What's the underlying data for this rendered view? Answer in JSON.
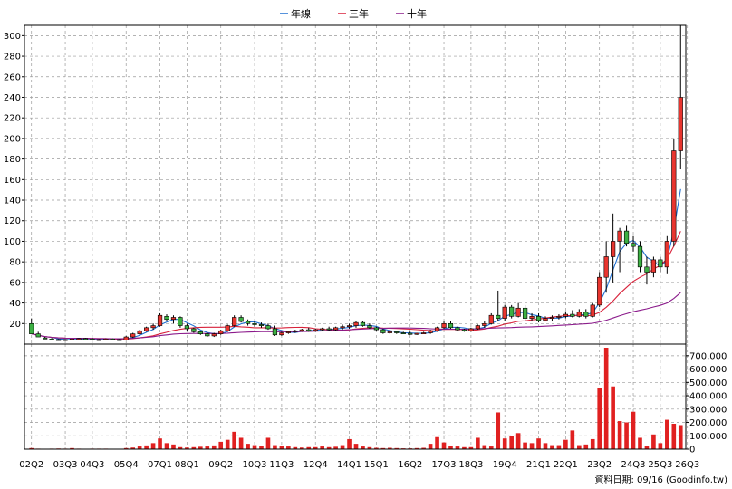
{
  "chart_data": {
    "type": "candlestick",
    "legend": [
      {
        "name": "年線",
        "color": "#1f6fd1"
      },
      {
        "name": "三年",
        "color": "#d8213a"
      },
      {
        "name": "十年",
        "color": "#8b1a8b"
      }
    ],
    "legend_placement": "top-center",
    "grid": true,
    "up_color": "#e8352f",
    "down_color": "#3cb043",
    "volume_color": "#e02020",
    "price_axis": {
      "min": 0,
      "max": 310,
      "ticks": [
        20,
        40,
        60,
        80,
        100,
        120,
        140,
        160,
        180,
        200,
        220,
        240,
        260,
        280,
        300
      ],
      "side": "left"
    },
    "volume_axis": {
      "min": 0,
      "max": 760000,
      "ticks": [
        0,
        100000,
        200000,
        300000,
        400000,
        500000,
        600000,
        700000
      ],
      "tick_labels": [
        "0",
        "100,000",
        "200,000",
        "300,000",
        "400,000",
        "500,000",
        "600,000",
        "700,000"
      ],
      "side": "right"
    },
    "x_tick_labels": [
      {
        "label": "02Q2",
        "q": 0
      },
      {
        "label": "03Q3",
        "q": 5
      },
      {
        "label": "04Q3",
        "q": 9
      },
      {
        "label": "05Q4",
        "q": 14
      },
      {
        "label": "07Q1",
        "q": 19
      },
      {
        "label": "08Q1",
        "q": 23
      },
      {
        "label": "09Q2",
        "q": 28
      },
      {
        "label": "10Q3",
        "q": 33
      },
      {
        "label": "11Q3",
        "q": 37
      },
      {
        "label": "12Q4",
        "q": 42
      },
      {
        "label": "14Q1",
        "q": 47
      },
      {
        "label": "15Q1",
        "q": 51
      },
      {
        "label": "16Q2",
        "q": 56
      },
      {
        "label": "17Q3",
        "q": 61
      },
      {
        "label": "18Q3",
        "q": 65
      },
      {
        "label": "19Q4",
        "q": 70
      },
      {
        "label": "21Q1",
        "q": 75
      },
      {
        "label": "22Q1",
        "q": 79
      },
      {
        "label": "23Q2",
        "q": 84
      },
      {
        "label": "24Q3",
        "q": 89
      },
      {
        "label": "25Q3",
        "q": 93
      },
      {
        "label": "26Q3",
        "q": 97
      }
    ],
    "candles": [
      {
        "o": 20,
        "h": 25,
        "l": 10,
        "c": 10
      },
      {
        "o": 10,
        "h": 12,
        "l": 7,
        "c": 7
      },
      {
        "o": 6,
        "h": 7,
        "l": 5,
        "c": 5
      },
      {
        "o": 5,
        "h": 6,
        "l": 4,
        "c": 4.5
      },
      {
        "o": 4.5,
        "h": 5,
        "l": 3.5,
        "c": 4
      },
      {
        "o": 4,
        "h": 5,
        "l": 3.5,
        "c": 4.5
      },
      {
        "o": 4.5,
        "h": 5.5,
        "l": 4,
        "c": 5
      },
      {
        "o": 5,
        "h": 6,
        "l": 4.5,
        "c": 5.5
      },
      {
        "o": 5.5,
        "h": 6,
        "l": 4.5,
        "c": 5
      },
      {
        "o": 5,
        "h": 6,
        "l": 4,
        "c": 4.5
      },
      {
        "o": 4.5,
        "h": 5,
        "l": 4,
        "c": 4.5
      },
      {
        "o": 4.5,
        "h": 5.5,
        "l": 4,
        "c": 5
      },
      {
        "o": 5,
        "h": 5.5,
        "l": 4,
        "c": 4.5
      },
      {
        "o": 4.5,
        "h": 5,
        "l": 3.5,
        "c": 4
      },
      {
        "o": 4,
        "h": 8,
        "l": 4,
        "c": 7
      },
      {
        "o": 7,
        "h": 11,
        "l": 6,
        "c": 10
      },
      {
        "o": 10,
        "h": 14,
        "l": 9,
        "c": 13
      },
      {
        "o": 13,
        "h": 17,
        "l": 12,
        "c": 16
      },
      {
        "o": 16,
        "h": 20,
        "l": 14,
        "c": 18
      },
      {
        "o": 18,
        "h": 30,
        "l": 17,
        "c": 28
      },
      {
        "o": 27,
        "h": 29,
        "l": 22,
        "c": 24
      },
      {
        "o": 24,
        "h": 28,
        "l": 20,
        "c": 26
      },
      {
        "o": 26,
        "h": 27,
        "l": 16,
        "c": 18
      },
      {
        "o": 18,
        "h": 20,
        "l": 13,
        "c": 15
      },
      {
        "o": 15,
        "h": 16,
        "l": 11,
        "c": 12
      },
      {
        "o": 12,
        "h": 13,
        "l": 9,
        "c": 10
      },
      {
        "o": 10,
        "h": 11,
        "l": 7,
        "c": 8
      },
      {
        "o": 8,
        "h": 11,
        "l": 7,
        "c": 10
      },
      {
        "o": 10,
        "h": 14,
        "l": 9,
        "c": 13
      },
      {
        "o": 13,
        "h": 19,
        "l": 12,
        "c": 18
      },
      {
        "o": 18,
        "h": 28,
        "l": 17,
        "c": 26
      },
      {
        "o": 26,
        "h": 28,
        "l": 21,
        "c": 22
      },
      {
        "o": 22,
        "h": 24,
        "l": 18,
        "c": 20
      },
      {
        "o": 20,
        "h": 22,
        "l": 17,
        "c": 19
      },
      {
        "o": 19,
        "h": 21,
        "l": 16,
        "c": 18
      },
      {
        "o": 18,
        "h": 20,
        "l": 14,
        "c": 15
      },
      {
        "o": 15,
        "h": 18,
        "l": 8,
        "c": 9
      },
      {
        "o": 9,
        "h": 12,
        "l": 8,
        "c": 11
      },
      {
        "o": 11,
        "h": 13,
        "l": 10,
        "c": 12
      },
      {
        "o": 12,
        "h": 14,
        "l": 11,
        "c": 13
      },
      {
        "o": 13,
        "h": 15,
        "l": 12,
        "c": 14
      },
      {
        "o": 14,
        "h": 16,
        "l": 12,
        "c": 13
      },
      {
        "o": 13,
        "h": 15,
        "l": 12,
        "c": 14
      },
      {
        "o": 14,
        "h": 16,
        "l": 13,
        "c": 15
      },
      {
        "o": 15,
        "h": 17,
        "l": 13,
        "c": 14
      },
      {
        "o": 14,
        "h": 17,
        "l": 13,
        "c": 16
      },
      {
        "o": 16,
        "h": 19,
        "l": 14,
        "c": 17
      },
      {
        "o": 17,
        "h": 20,
        "l": 15,
        "c": 18
      },
      {
        "o": 18,
        "h": 22,
        "l": 16,
        "c": 21
      },
      {
        "o": 21,
        "h": 22,
        "l": 17,
        "c": 18
      },
      {
        "o": 18,
        "h": 20,
        "l": 15,
        "c": 16
      },
      {
        "o": 16,
        "h": 17,
        "l": 13,
        "c": 14
      },
      {
        "o": 14,
        "h": 15,
        "l": 10,
        "c": 11
      },
      {
        "o": 11,
        "h": 13,
        "l": 10,
        "c": 12
      },
      {
        "o": 12,
        "h": 13,
        "l": 10,
        "c": 11
      },
      {
        "o": 11,
        "h": 12,
        "l": 10,
        "c": 10.5
      },
      {
        "o": 10.5,
        "h": 12,
        "l": 9,
        "c": 10
      },
      {
        "o": 10,
        "h": 11,
        "l": 9,
        "c": 10.5
      },
      {
        "o": 10.5,
        "h": 12,
        "l": 10,
        "c": 11
      },
      {
        "o": 11,
        "h": 14,
        "l": 10,
        "c": 13
      },
      {
        "o": 13,
        "h": 17,
        "l": 12,
        "c": 16
      },
      {
        "o": 16,
        "h": 22,
        "l": 15,
        "c": 20
      },
      {
        "o": 20,
        "h": 22,
        "l": 15,
        "c": 16
      },
      {
        "o": 16,
        "h": 17,
        "l": 13,
        "c": 14
      },
      {
        "o": 14,
        "h": 15,
        "l": 12,
        "c": 13
      },
      {
        "o": 13,
        "h": 16,
        "l": 12,
        "c": 15
      },
      {
        "o": 15,
        "h": 19,
        "l": 14,
        "c": 18
      },
      {
        "o": 18,
        "h": 22,
        "l": 16,
        "c": 20
      },
      {
        "o": 20,
        "h": 30,
        "l": 19,
        "c": 28
      },
      {
        "o": 28,
        "h": 52,
        "l": 22,
        "c": 25
      },
      {
        "o": 25,
        "h": 38,
        "l": 22,
        "c": 36
      },
      {
        "o": 36,
        "h": 38,
        "l": 25,
        "c": 27
      },
      {
        "o": 27,
        "h": 40,
        "l": 26,
        "c": 35
      },
      {
        "o": 35,
        "h": 38,
        "l": 23,
        "c": 25
      },
      {
        "o": 25,
        "h": 30,
        "l": 22,
        "c": 27
      },
      {
        "o": 27,
        "h": 30,
        "l": 21,
        "c": 23
      },
      {
        "o": 23,
        "h": 27,
        "l": 22,
        "c": 25
      },
      {
        "o": 25,
        "h": 28,
        "l": 22,
        "c": 26
      },
      {
        "o": 26,
        "h": 29,
        "l": 24,
        "c": 27
      },
      {
        "o": 27,
        "h": 32,
        "l": 25,
        "c": 29
      },
      {
        "o": 29,
        "h": 33,
        "l": 26,
        "c": 27
      },
      {
        "o": 27,
        "h": 34,
        "l": 26,
        "c": 31
      },
      {
        "o": 31,
        "h": 34,
        "l": 25,
        "c": 27
      },
      {
        "o": 27,
        "h": 40,
        "l": 26,
        "c": 38
      },
      {
        "o": 38,
        "h": 70,
        "l": 36,
        "c": 65
      },
      {
        "o": 65,
        "h": 100,
        "l": 50,
        "c": 85
      },
      {
        "o": 85,
        "h": 127,
        "l": 60,
        "c": 100
      },
      {
        "o": 100,
        "h": 113,
        "l": 70,
        "c": 110
      },
      {
        "o": 110,
        "h": 115,
        "l": 95,
        "c": 98
      },
      {
        "o": 98,
        "h": 105,
        "l": 90,
        "c": 95
      },
      {
        "o": 95,
        "h": 100,
        "l": 70,
        "c": 75
      },
      {
        "o": 75,
        "h": 85,
        "l": 58,
        "c": 70
      },
      {
        "o": 70,
        "h": 85,
        "l": 65,
        "c": 82
      },
      {
        "o": 82,
        "h": 85,
        "l": 70,
        "c": 75
      },
      {
        "o": 75,
        "h": 105,
        "l": 68,
        "c": 100
      },
      {
        "o": 100,
        "h": 200,
        "l": 95,
        "c": 188
      },
      {
        "o": 188,
        "h": 310,
        "l": 170,
        "c": 240
      }
    ],
    "volumes": [
      8000,
      4000,
      3000,
      4000,
      5000,
      4000,
      8000,
      4000,
      3000,
      4000,
      4000,
      4000,
      3000,
      3000,
      8000,
      12000,
      20000,
      28000,
      45000,
      80000,
      45000,
      35000,
      15000,
      12000,
      15000,
      18000,
      20000,
      28000,
      55000,
      70000,
      130000,
      85000,
      40000,
      30000,
      25000,
      85000,
      30000,
      25000,
      20000,
      15000,
      12000,
      15000,
      15000,
      20000,
      15000,
      18000,
      30000,
      75000,
      40000,
      20000,
      15000,
      10000,
      8000,
      10000,
      8000,
      6000,
      6000,
      8000,
      10000,
      40000,
      90000,
      50000,
      25000,
      20000,
      15000,
      15000,
      85000,
      30000,
      20000,
      275000,
      80000,
      95000,
      120000,
      50000,
      45000,
      80000,
      45000,
      30000,
      30000,
      70000,
      140000,
      30000,
      35000,
      75000,
      455000,
      760000,
      470000,
      210000,
      200000,
      280000,
      85000,
      25000,
      110000,
      45000,
      220000,
      190000,
      180000
    ]
  },
  "footer": {
    "date_label": "資料日期: 09/16 (Goodinfo.tw)"
  }
}
